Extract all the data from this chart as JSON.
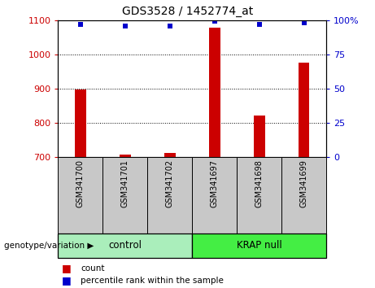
{
  "title": "GDS3528 / 1452774_at",
  "samples": [
    "GSM341700",
    "GSM341701",
    "GSM341702",
    "GSM341697",
    "GSM341698",
    "GSM341699"
  ],
  "bar_values": [
    897,
    706,
    711,
    1079,
    820,
    976
  ],
  "dot_values": [
    97,
    96,
    96,
    99,
    97,
    98
  ],
  "bar_color": "#CC0000",
  "dot_color": "#0000CC",
  "ylim_left": [
    700,
    1100
  ],
  "ylim_right": [
    0,
    100
  ],
  "yticks_left": [
    700,
    800,
    900,
    1000,
    1100
  ],
  "yticks_right": [
    0,
    25,
    50,
    75,
    100
  ],
  "legend_count_label": "count",
  "legend_pct_label": "percentile rank within the sample",
  "group_area_color_control": "#AAEEBB",
  "group_area_color_krap": "#44EE44",
  "genotype_label": "genotype/variation",
  "title_fontsize": 10,
  "bar_width": 0.25,
  "tick_area_color": "#C8C8C8"
}
